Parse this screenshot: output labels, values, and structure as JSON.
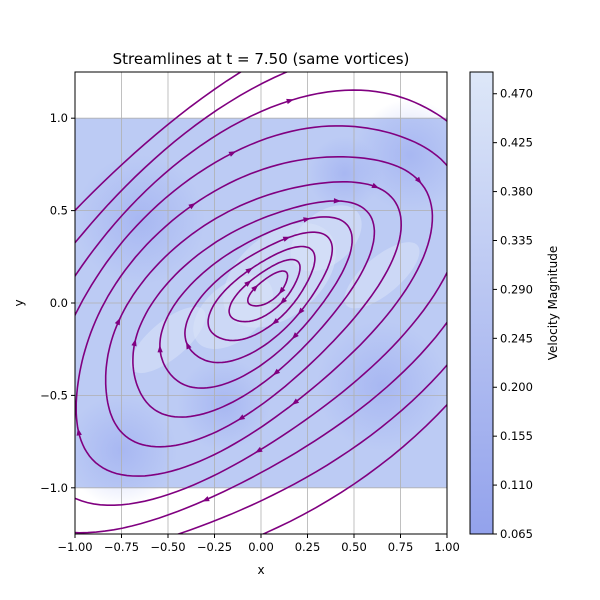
{
  "chart_data": {
    "type": "streamplot",
    "title": "Streamlines at t = 7.50 (same vortices)",
    "xlabel": "x",
    "ylabel": "y",
    "xlim": [
      -1.0,
      1.0
    ],
    "ylim": [
      -1.25,
      1.25
    ],
    "data_extent": {
      "x": [
        -1.0,
        1.0
      ],
      "y": [
        -1.0,
        1.0
      ]
    },
    "x_ticks": [
      -1.0,
      -0.75,
      -0.5,
      -0.25,
      0.0,
      0.25,
      0.5,
      0.75,
      1.0
    ],
    "x_tick_labels": [
      "−1.00",
      "−0.75",
      "−0.50",
      "−0.25",
      "0.00",
      "0.25",
      "0.50",
      "0.75",
      "1.00"
    ],
    "y_ticks": [
      -1.0,
      -0.5,
      0.0,
      0.5,
      1.0
    ],
    "y_tick_labels": [
      "−1.0",
      "−0.5",
      "0.0",
      "0.5",
      "1.0"
    ],
    "grid": true,
    "vortices": [
      {
        "x": -0.08,
        "y": -0.03,
        "rotation": "clockwise"
      },
      {
        "x": 0.32,
        "y": 0.32,
        "rotation": "clockwise"
      }
    ],
    "field_ellipse_angle_deg": 40,
    "field_ellipse_aspect": 1.45,
    "streamline_color": "#800080",
    "colorbar": {
      "label": "Velocity Magnitude",
      "min": 0.065,
      "max": 0.49,
      "ticks": [
        0.065,
        0.11,
        0.155,
        0.2,
        0.245,
        0.29,
        0.335,
        0.38,
        0.425,
        0.47
      ],
      "tick_labels": [
        "0.065",
        "0.110",
        "0.155",
        "0.200",
        "0.245",
        "0.290",
        "0.335",
        "0.380",
        "0.425",
        "0.470"
      ],
      "color_low": "#93a2ec",
      "color_high": "#dde7f8"
    }
  }
}
